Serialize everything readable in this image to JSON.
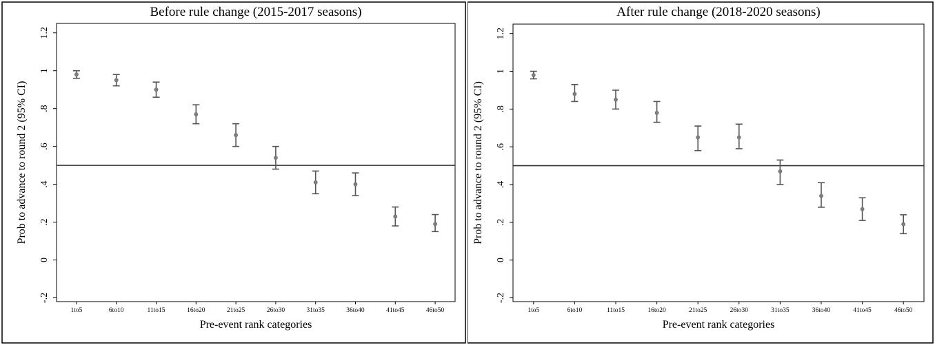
{
  "chart_data": [
    {
      "type": "scatter",
      "title": "Before rule change (2015-2017 seasons)",
      "xlabel": "Pre-event rank categories",
      "ylabel": "Prob to advance to round 2 (95% CI)",
      "categories": [
        "1to5",
        "6to10",
        "11to15",
        "16to20",
        "21to25",
        "26to30",
        "31to35",
        "36to40",
        "41to45",
        "46to50"
      ],
      "values": [
        0.98,
        0.95,
        0.9,
        0.77,
        0.66,
        0.54,
        0.41,
        0.4,
        0.23,
        0.19
      ],
      "ci_low": [
        0.96,
        0.92,
        0.86,
        0.72,
        0.6,
        0.48,
        0.35,
        0.34,
        0.18,
        0.15
      ],
      "ci_high": [
        1.0,
        0.98,
        0.94,
        0.82,
        0.72,
        0.6,
        0.47,
        0.46,
        0.28,
        0.24
      ],
      "reference_line": 0.5,
      "ylim": [
        -0.22,
        1.25
      ],
      "yticks": [
        -0.2,
        0,
        0.2,
        0.4,
        0.6,
        0.8,
        1,
        1.2
      ],
      "ytick_labels": [
        "-.2",
        "0",
        ".2",
        ".4",
        ".6",
        ".8",
        "1",
        "1.2"
      ],
      "colors": {
        "marker": "#808080",
        "errorbar": "#555555",
        "line": "#333333"
      }
    },
    {
      "type": "scatter",
      "title": "After rule change (2018-2020 seasons)",
      "xlabel": "Pre-event rank categories",
      "ylabel": "Prob to advance to round 2 (95% CI)",
      "categories": [
        "1to5",
        "6to10",
        "11to15",
        "16to20",
        "21to25",
        "26to30",
        "31to35",
        "36to40",
        "41to45",
        "46to50"
      ],
      "values": [
        0.98,
        0.88,
        0.85,
        0.78,
        0.65,
        0.65,
        0.47,
        0.34,
        0.27,
        0.19
      ],
      "ci_low": [
        0.96,
        0.84,
        0.8,
        0.73,
        0.58,
        0.59,
        0.4,
        0.28,
        0.21,
        0.14
      ],
      "ci_high": [
        1.0,
        0.93,
        0.9,
        0.84,
        0.71,
        0.72,
        0.53,
        0.41,
        0.33,
        0.24
      ],
      "reference_line": 0.5,
      "ylim": [
        -0.22,
        1.25
      ],
      "yticks": [
        -0.2,
        0,
        0.2,
        0.4,
        0.6,
        0.8,
        1,
        1.2
      ],
      "ytick_labels": [
        "-.2",
        "0",
        ".2",
        ".4",
        ".6",
        ".8",
        "1",
        "1.2"
      ],
      "colors": {
        "marker": "#808080",
        "errorbar": "#555555",
        "line": "#333333"
      }
    }
  ]
}
